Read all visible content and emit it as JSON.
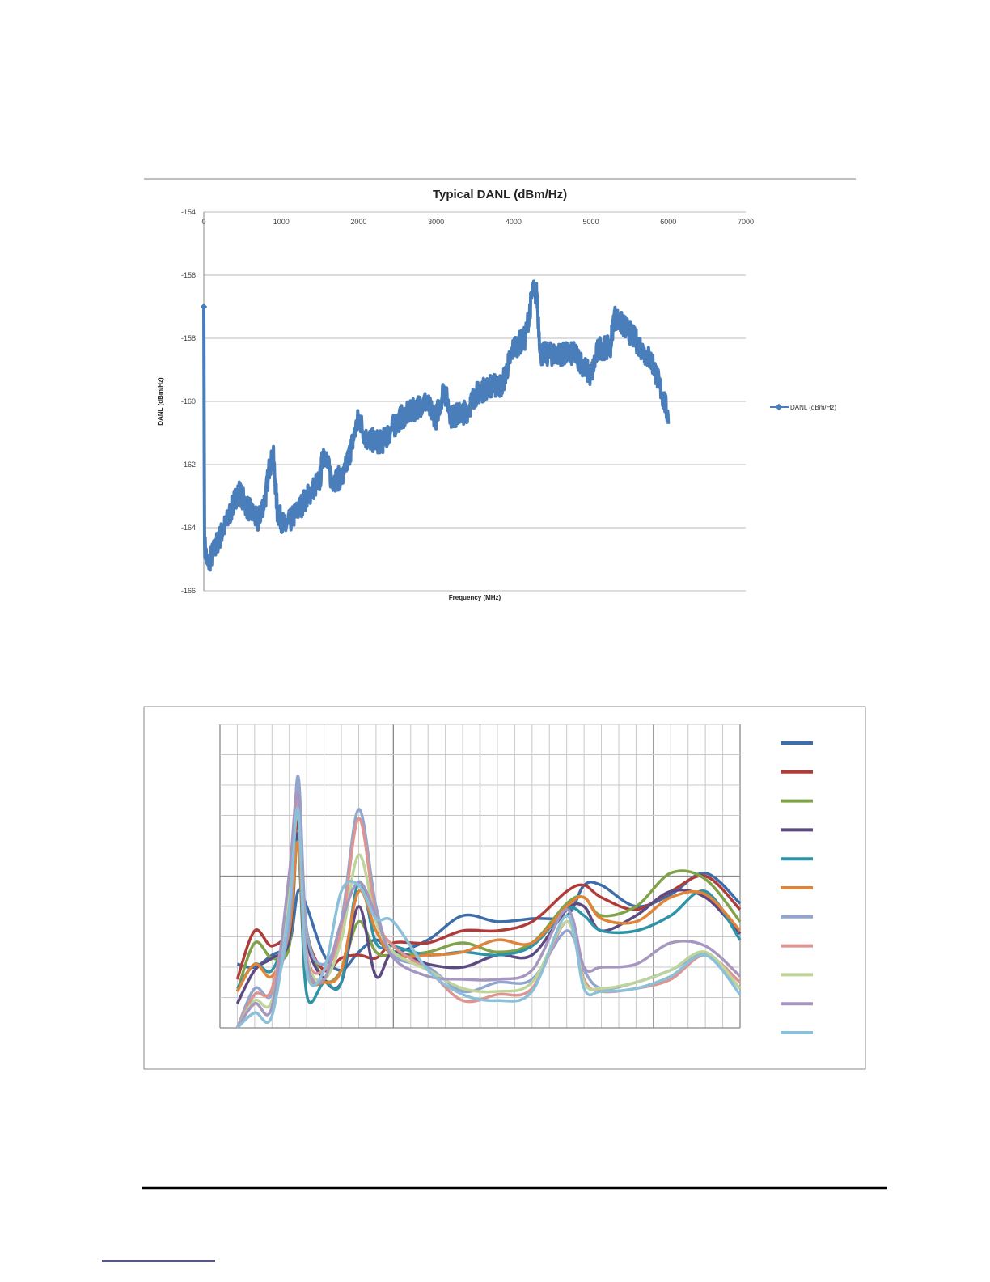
{
  "chart_data": [
    {
      "type": "scatter",
      "title": "Typical DANL (dBm/Hz)",
      "xlabel": "Frequency (MHz)",
      "ylabel": "DANL (dBm/Hz)",
      "xlim": [
        0,
        7000
      ],
      "ylim": [
        -166,
        -154
      ],
      "xticks": [
        "0",
        "1000",
        "2000",
        "3000",
        "4000",
        "5000",
        "6000",
        "7000"
      ],
      "yticks": [
        "-154",
        "-156",
        "-158",
        "-160",
        "-162",
        "-164",
        "-166"
      ],
      "grid": "horizontal",
      "legend_position": "right",
      "series": [
        {
          "name": "DANL (dBm/Hz)",
          "color": "#4a7ebb",
          "trend": [
            [
              0,
              -157
            ],
            [
              10,
              -164.5
            ],
            [
              50,
              -165.2
            ],
            [
              150,
              -164.6
            ],
            [
              300,
              -163.8
            ],
            [
              450,
              -162.8
            ],
            [
              550,
              -163.3
            ],
            [
              700,
              -163.8
            ],
            [
              800,
              -163
            ],
            [
              850,
              -162
            ],
            [
              900,
              -161.8
            ],
            [
              950,
              -163.5
            ],
            [
              1050,
              -164
            ],
            [
              1200,
              -163.5
            ],
            [
              1400,
              -162.8
            ],
            [
              1500,
              -162.5
            ],
            [
              1550,
              -161.5
            ],
            [
              1650,
              -162.5
            ],
            [
              1800,
              -162.4
            ],
            [
              1900,
              -161.5
            ],
            [
              2000,
              -160.5
            ],
            [
              2100,
              -161.2
            ],
            [
              2300,
              -161.3
            ],
            [
              2450,
              -160.8
            ],
            [
              2550,
              -160.5
            ],
            [
              2700,
              -160.3
            ],
            [
              2850,
              -160
            ],
            [
              3000,
              -160.5
            ],
            [
              3100,
              -159.6
            ],
            [
              3200,
              -160.5
            ],
            [
              3400,
              -160.3
            ],
            [
              3500,
              -159.8
            ],
            [
              3700,
              -159.5
            ],
            [
              3850,
              -159.5
            ],
            [
              4000,
              -158.3
            ],
            [
              4150,
              -158
            ],
            [
              4250,
              -156.5
            ],
            [
              4300,
              -156.6
            ],
            [
              4350,
              -158.5
            ],
            [
              4600,
              -158.5
            ],
            [
              4800,
              -158.5
            ],
            [
              5000,
              -159.2
            ],
            [
              5100,
              -158.3
            ],
            [
              5250,
              -158.3
            ],
            [
              5300,
              -157.3
            ],
            [
              5500,
              -157.8
            ],
            [
              5800,
              -158.8
            ],
            [
              5950,
              -160
            ],
            [
              6000,
              -160.5
            ]
          ]
        }
      ]
    },
    {
      "type": "line",
      "title": "",
      "xlim": [
        0,
        30
      ],
      "ylim": [
        0,
        10
      ],
      "grid": "both",
      "legend_position": "right",
      "x": [
        1,
        2,
        3,
        4,
        4.5,
        5,
        6,
        7,
        8,
        9,
        10,
        12,
        14,
        16,
        18,
        20,
        21,
        22,
        24,
        26,
        28,
        30
      ],
      "series": [
        {
          "color": "#3d6eaa",
          "values": [
            2.1,
            2.0,
            2.4,
            2.8,
            4.5,
            4.0,
            2.4,
            1.9,
            2.5,
            2.9,
            2.5,
            2.9,
            3.7,
            3.5,
            3.6,
            3.7,
            4.7,
            4.7,
            4.0,
            4.4,
            5.1,
            4.1
          ]
        },
        {
          "color": "#b03c3a",
          "values": [
            1.6,
            3.2,
            2.7,
            3.5,
            6.9,
            3.2,
            1.9,
            2.3,
            2.4,
            2.3,
            2.8,
            2.8,
            3.2,
            3.2,
            3.5,
            4.5,
            4.7,
            4.3,
            3.9,
            4.5,
            5.0,
            3.9
          ]
        },
        {
          "color": "#7fa24a",
          "values": [
            1.2,
            2.8,
            2.3,
            2.7,
            6.4,
            3.2,
            1.6,
            1.9,
            3.5,
            2.5,
            2.4,
            2.5,
            2.8,
            2.5,
            2.8,
            4.1,
            4.3,
            3.7,
            4.0,
            5.1,
            4.9,
            3.5
          ]
        },
        {
          "color": "#5e4a82",
          "values": [
            0.8,
            1.9,
            2.3,
            2.9,
            6.4,
            2.9,
            1.6,
            1.5,
            4.0,
            1.7,
            2.5,
            2.1,
            2.0,
            2.4,
            2.4,
            3.9,
            4.0,
            3.2,
            3.7,
            4.5,
            4.3,
            3.1
          ]
        },
        {
          "color": "#2f93a8",
          "values": [
            1.3,
            2.1,
            1.9,
            3.5,
            6.1,
            1.1,
            1.5,
            1.5,
            4.8,
            2.8,
            2.7,
            2.4,
            2.5,
            2.4,
            2.7,
            3.9,
            3.7,
            3.2,
            3.2,
            3.7,
            4.5,
            2.9
          ]
        },
        {
          "color": "#e0843a",
          "values": [
            1.2,
            2.1,
            1.7,
            3.2,
            6.1,
            1.9,
            1.5,
            1.9,
            4.5,
            3.2,
            2.4,
            2.4,
            2.5,
            2.9,
            2.8,
            4.0,
            4.3,
            3.6,
            3.5,
            4.3,
            4.4,
            3.2
          ]
        },
        {
          "color": "#90a6cf",
          "values": [
            0,
            1.3,
            1.1,
            3.5,
            8.3,
            3.2,
            2.1,
            3.5,
            7.2,
            4.0,
            2.4,
            2.0,
            1.2,
            1.5,
            1.6,
            3.2,
            1.9,
            1.3,
            1.5,
            1.9,
            2.4,
            1.3
          ]
        },
        {
          "color": "#dd9592",
          "values": [
            0,
            1.1,
            1.3,
            4.5,
            7.5,
            2.5,
            1.9,
            3.2,
            6.9,
            3.7,
            2.7,
            1.9,
            0.9,
            1.1,
            1.3,
            3.5,
            1.6,
            1.2,
            1.3,
            1.6,
            2.4,
            1.5
          ]
        },
        {
          "color": "#bfd49a",
          "values": [
            0,
            0.9,
            0.9,
            4.3,
            7.1,
            2.4,
            1.6,
            2.9,
            5.7,
            3.5,
            2.5,
            1.9,
            1.3,
            1.2,
            1.5,
            3.5,
            1.5,
            1.3,
            1.5,
            1.9,
            2.5,
            1.3
          ]
        },
        {
          "color": "#a697c0",
          "values": [
            0,
            0.8,
            0.7,
            5.1,
            7.7,
            2.3,
            1.6,
            3.5,
            4.8,
            3.7,
            2.3,
            1.7,
            1.6,
            1.6,
            1.9,
            3.9,
            2.0,
            2.0,
            2.1,
            2.8,
            2.7,
            1.7
          ]
        },
        {
          "color": "#8cc0d8",
          "values": [
            0,
            0.5,
            0.4,
            4.0,
            7.2,
            1.9,
            1.9,
            4.5,
            4.7,
            3.6,
            3.5,
            1.9,
            1.1,
            0.9,
            1.2,
            3.7,
            1.3,
            1.2,
            1.3,
            1.7,
            2.4,
            1.1
          ]
        }
      ]
    }
  ]
}
